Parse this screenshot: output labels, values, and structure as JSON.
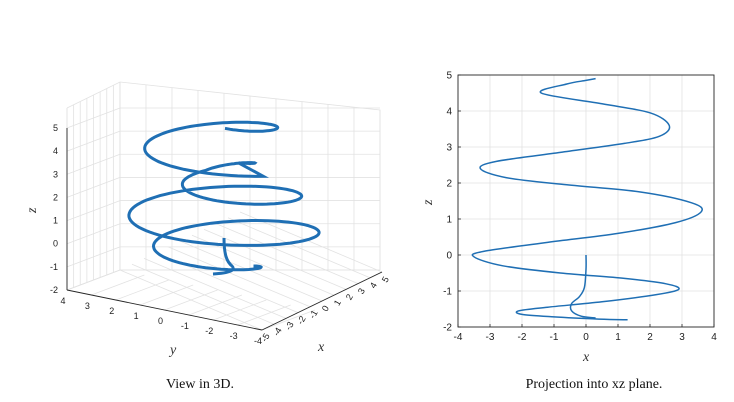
{
  "colors": {
    "line": "#1f6fb4",
    "axis": "#262626",
    "grid": "#e2e2e2"
  },
  "chart_data": [
    {
      "type": "line",
      "projection": "3d",
      "title": "",
      "caption": "View in 3D.",
      "xlabel": "x",
      "ylabel": "y",
      "zlabel": "z",
      "xlim": [
        -5,
        5
      ],
      "ylim": [
        -4,
        4
      ],
      "zlim": [
        -2,
        5
      ],
      "xticks": [
        -5,
        -4,
        -3,
        -2,
        -1,
        0,
        1,
        2,
        3,
        4,
        5
      ],
      "yticks": [
        4,
        3,
        2,
        1,
        0,
        -1,
        -2,
        -3,
        -4
      ],
      "zticks": [
        5,
        4,
        3,
        2,
        1,
        0,
        -1,
        -2
      ],
      "grid": true,
      "series": [
        {
          "name": "helix",
          "color": "#1f6fb4",
          "points": [
            [
              0,
              0,
              0.05
            ],
            [
              0.05,
              0.05,
              -0.3
            ],
            [
              0.3,
              0.25,
              -0.75
            ],
            [
              0.7,
              0.6,
              -0.95
            ],
            [
              1.5,
              1.2,
              -1.05
            ],
            [
              2.3,
              1.5,
              -1.15
            ],
            [
              2.6,
              1.4,
              -1.25
            ],
            [
              2.5,
              0.9,
              -1.35
            ],
            [
              1.8,
              0.2,
              -1.45
            ],
            [
              0.6,
              -0.6,
              -1.55
            ],
            [
              -0.4,
              -1.3,
              -1.6
            ],
            [
              -0.5,
              -1.5,
              -1.7
            ],
            [
              -0.2,
              -1.3,
              -1.75
            ],
            [
              0.3,
              -0.7,
              -1.8
            ],
            [
              1.0,
              0.2,
              -1.8
            ]
          ]
        }
      ]
    },
    {
      "type": "line",
      "title": "",
      "caption": "Projection into xz plane.",
      "xlabel": "x",
      "ylabel": "z",
      "xlim": [
        -4,
        4
      ],
      "ylim": [
        -2,
        5
      ],
      "xticks": [
        -4,
        -3,
        -2,
        -1,
        0,
        1,
        2,
        3,
        4
      ],
      "yticks": [
        5,
        4,
        3,
        2,
        1,
        0,
        -1,
        -2
      ],
      "grid": true,
      "series": [
        {
          "name": "projection",
          "color": "#1f6fb4",
          "x": [
            0.3,
            0.0,
            -0.6,
            -1.4,
            0.5,
            2.0,
            2.6,
            2.3,
            1.2,
            -0.8,
            -2.8,
            -3.3,
            -2.5,
            -0.6,
            1.7,
            3.3,
            3.6,
            2.8,
            1.0,
            -1.2,
            -3.2,
            -3.5,
            -2.6,
            -0.8,
            1.2,
            2.5,
            2.9,
            2.2,
            0.5,
            -1.2,
            -2.1,
            -2.0,
            -1.0,
            0.4,
            1.3
          ],
          "z": [
            4.9,
            4.85,
            4.75,
            4.5,
            4.2,
            3.95,
            3.6,
            3.3,
            3.1,
            2.85,
            2.6,
            2.4,
            2.15,
            1.95,
            1.75,
            1.45,
            1.2,
            0.9,
            0.6,
            0.35,
            0.1,
            -0.05,
            -0.3,
            -0.5,
            -0.65,
            -0.8,
            -0.95,
            -1.1,
            -1.3,
            -1.45,
            -1.55,
            -1.65,
            -1.72,
            -1.78,
            -1.8
          ]
        },
        {
          "name": "inner-loop",
          "color": "#1f6fb4",
          "x": [
            0.0,
            0.0,
            -0.05,
            -0.2,
            -0.45,
            -0.45,
            -0.15,
            0.3
          ],
          "z": [
            0.0,
            -0.4,
            -0.9,
            -1.15,
            -1.35,
            -1.55,
            -1.7,
            -1.75
          ]
        }
      ]
    }
  ]
}
